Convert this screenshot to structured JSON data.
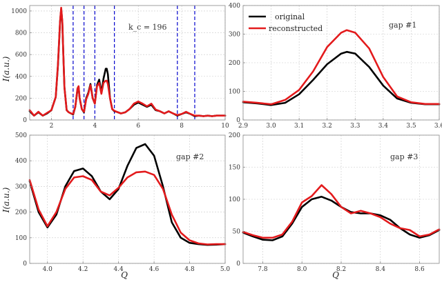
{
  "colors": {
    "original": "#000000",
    "reconstructed": "#e31a1c",
    "gap_lines": "#0000cc"
  },
  "chart_data": [
    {
      "type": "line",
      "panel": "top-left",
      "xlim": [
        1,
        10
      ],
      "ylim": [
        0,
        1050
      ],
      "xticks": [
        2,
        4,
        6,
        8,
        10
      ],
      "yticks": [
        0,
        200,
        400,
        600,
        800,
        1000
      ],
      "xtick_labels": [
        "2",
        "4",
        "6",
        "8",
        "10"
      ],
      "ytick_labels": [
        "0",
        "200",
        "400",
        "600",
        "800",
        "1000"
      ],
      "xlabel": "",
      "ylabel": "I(a.u.)",
      "annotation": "k_c = 196",
      "vlines": [
        3.0,
        3.5,
        4.0,
        4.9,
        7.8,
        8.6
      ],
      "grid": true,
      "series": [
        {
          "name": "original",
          "x": [
            1.0,
            1.2,
            1.4,
            1.6,
            1.8,
            2.0,
            2.2,
            2.3,
            2.4,
            2.45,
            2.5,
            2.55,
            2.6,
            2.7,
            2.8,
            2.9,
            3.0,
            3.1,
            3.2,
            3.25,
            3.3,
            3.4,
            3.5,
            3.6,
            3.7,
            3.8,
            3.9,
            4.0,
            4.1,
            4.2,
            4.3,
            4.4,
            4.5,
            4.55,
            4.6,
            4.7,
            4.8,
            4.9,
            5.0,
            5.2,
            5.4,
            5.6,
            5.8,
            6.0,
            6.2,
            6.4,
            6.6,
            6.8,
            7.0,
            7.2,
            7.4,
            7.6,
            7.8,
            8.0,
            8.2,
            8.4,
            8.6,
            8.8,
            9.0,
            9.2,
            9.4,
            9.6,
            9.8,
            10.0
          ],
          "values": [
            80,
            40,
            70,
            40,
            60,
            90,
            210,
            500,
            900,
            1020,
            900,
            600,
            300,
            90,
            70,
            60,
            50,
            120,
            280,
            300,
            200,
            100,
            70,
            200,
            250,
            330,
            200,
            150,
            320,
            370,
            250,
            380,
            470,
            470,
            420,
            200,
            100,
            80,
            75,
            60,
            70,
            100,
            140,
            160,
            140,
            120,
            140,
            90,
            80,
            60,
            80,
            60,
            40,
            55,
            70,
            55,
            35,
            40,
            35,
            40,
            35,
            40,
            40,
            40
          ]
        },
        {
          "name": "reconstructed",
          "x": [
            1.0,
            1.2,
            1.4,
            1.6,
            1.8,
            2.0,
            2.2,
            2.3,
            2.4,
            2.45,
            2.5,
            2.55,
            2.6,
            2.7,
            2.8,
            2.9,
            3.0,
            3.1,
            3.2,
            3.25,
            3.3,
            3.4,
            3.5,
            3.6,
            3.7,
            3.8,
            3.9,
            4.0,
            4.1,
            4.2,
            4.3,
            4.4,
            4.5,
            4.55,
            4.6,
            4.7,
            4.8,
            4.9,
            5.0,
            5.2,
            5.4,
            5.6,
            5.8,
            6.0,
            6.2,
            6.4,
            6.6,
            6.8,
            7.0,
            7.2,
            7.4,
            7.6,
            7.8,
            8.0,
            8.2,
            8.4,
            8.6,
            8.8,
            9.0,
            9.2,
            9.4,
            9.6,
            9.8,
            10.0
          ],
          "values": [
            90,
            40,
            75,
            40,
            65,
            90,
            210,
            510,
            910,
            1030,
            905,
            600,
            300,
            90,
            70,
            60,
            55,
            120,
            290,
            310,
            200,
            100,
            75,
            190,
            240,
            320,
            200,
            150,
            310,
            340,
            240,
            340,
            360,
            360,
            330,
            200,
            100,
            85,
            75,
            60,
            70,
            100,
            150,
            170,
            150,
            125,
            150,
            95,
            80,
            60,
            80,
            60,
            45,
            55,
            75,
            55,
            40,
            40,
            35,
            40,
            35,
            40,
            40,
            40
          ]
        }
      ]
    },
    {
      "type": "line",
      "panel": "top-right",
      "title": "gap #1",
      "xlim": [
        2.9,
        3.6
      ],
      "ylim": [
        0,
        400
      ],
      "xticks": [
        2.9,
        3.0,
        3.1,
        3.2,
        3.3,
        3.4,
        3.5,
        3.6
      ],
      "yticks": [
        0,
        100,
        200,
        300,
        400
      ],
      "xtick_labels": [
        "2.9",
        "3.0",
        "3.1",
        "3.2",
        "3.3",
        "3.4",
        "3.5",
        "3.6"
      ],
      "ytick_labels": [
        "0",
        "100",
        "200",
        "300",
        "400"
      ],
      "legend": [
        "original",
        "reconstructed"
      ],
      "legend_position": "top-left",
      "grid": true,
      "series": [
        {
          "name": "original",
          "x": [
            2.9,
            2.95,
            3.0,
            3.05,
            3.1,
            3.15,
            3.2,
            3.25,
            3.27,
            3.3,
            3.35,
            3.4,
            3.45,
            3.5,
            3.55,
            3.6
          ],
          "values": [
            62,
            58,
            52,
            60,
            90,
            140,
            195,
            232,
            238,
            232,
            185,
            120,
            75,
            60,
            55,
            55
          ]
        },
        {
          "name": "reconstructed",
          "x": [
            2.9,
            2.95,
            3.0,
            3.05,
            3.1,
            3.15,
            3.2,
            3.25,
            3.27,
            3.3,
            3.35,
            3.4,
            3.45,
            3.5,
            3.55,
            3.6
          ],
          "values": [
            64,
            60,
            55,
            70,
            105,
            170,
            255,
            305,
            314,
            305,
            250,
            150,
            82,
            62,
            56,
            56
          ]
        }
      ]
    },
    {
      "type": "line",
      "panel": "bottom-left",
      "title": "gap #2",
      "xlim": [
        3.9,
        5.0
      ],
      "ylim": [
        0,
        500
      ],
      "xticks": [
        4.0,
        4.2,
        4.4,
        4.6,
        4.8,
        5.0
      ],
      "yticks": [
        0,
        100,
        200,
        300,
        400,
        500
      ],
      "xtick_labels": [
        "4.0",
        "4.2",
        "4.4",
        "4.6",
        "4.8",
        "5.0"
      ],
      "ytick_labels": [
        "0",
        "100",
        "200",
        "300",
        "400",
        "500"
      ],
      "xlabel": "Q",
      "ylabel": "I(a.u.)",
      "grid": true,
      "series": [
        {
          "name": "original",
          "x": [
            3.9,
            3.95,
            4.0,
            4.05,
            4.1,
            4.15,
            4.2,
            4.25,
            4.3,
            4.35,
            4.4,
            4.45,
            4.5,
            4.55,
            4.6,
            4.65,
            4.7,
            4.75,
            4.8,
            4.85,
            4.9,
            4.95,
            5.0
          ],
          "values": [
            320,
            200,
            140,
            190,
            300,
            360,
            370,
            340,
            280,
            250,
            290,
            380,
            450,
            465,
            420,
            300,
            160,
            100,
            80,
            75,
            72,
            73,
            75
          ]
        },
        {
          "name": "reconstructed",
          "x": [
            3.9,
            3.95,
            4.0,
            4.05,
            4.1,
            4.15,
            4.2,
            4.25,
            4.3,
            4.35,
            4.4,
            4.45,
            4.5,
            4.55,
            4.6,
            4.65,
            4.7,
            4.75,
            4.8,
            4.85,
            4.9,
            4.95,
            5.0
          ],
          "values": [
            325,
            210,
            145,
            200,
            290,
            335,
            340,
            325,
            280,
            265,
            295,
            335,
            355,
            358,
            345,
            290,
            190,
            120,
            90,
            78,
            74,
            75,
            75
          ]
        }
      ]
    },
    {
      "type": "line",
      "panel": "bottom-right",
      "title": "gap #3",
      "xlim": [
        7.7,
        8.7
      ],
      "ylim": [
        0,
        200
      ],
      "xticks": [
        7.8,
        8.0,
        8.2,
        8.4,
        8.6
      ],
      "yticks": [
        0,
        50,
        100,
        150,
        200
      ],
      "xtick_labels": [
        "7.8",
        "8.0",
        "8.2",
        "8.4",
        "8.6"
      ],
      "ytick_labels": [
        "0",
        "50",
        "100",
        "150",
        "200"
      ],
      "xlabel": "Q",
      "grid": true,
      "series": [
        {
          "name": "original",
          "x": [
            7.7,
            7.75,
            7.8,
            7.85,
            7.9,
            7.95,
            8.0,
            8.05,
            8.1,
            8.15,
            8.2,
            8.25,
            8.3,
            8.35,
            8.4,
            8.45,
            8.5,
            8.55,
            8.6,
            8.65,
            8.7
          ],
          "values": [
            48,
            42,
            37,
            36,
            42,
            62,
            88,
            100,
            104,
            98,
            88,
            80,
            78,
            78,
            75,
            68,
            55,
            45,
            40,
            44,
            52
          ]
        },
        {
          "name": "reconstructed",
          "x": [
            7.7,
            7.75,
            7.8,
            7.85,
            7.9,
            7.95,
            8.0,
            8.05,
            8.1,
            8.15,
            8.2,
            8.25,
            8.3,
            8.35,
            8.4,
            8.45,
            8.5,
            8.55,
            8.6,
            8.65,
            8.7
          ],
          "values": [
            49,
            44,
            40,
            40,
            45,
            65,
            95,
            105,
            122,
            108,
            88,
            78,
            82,
            78,
            72,
            62,
            55,
            52,
            42,
            45,
            53
          ]
        }
      ]
    }
  ]
}
